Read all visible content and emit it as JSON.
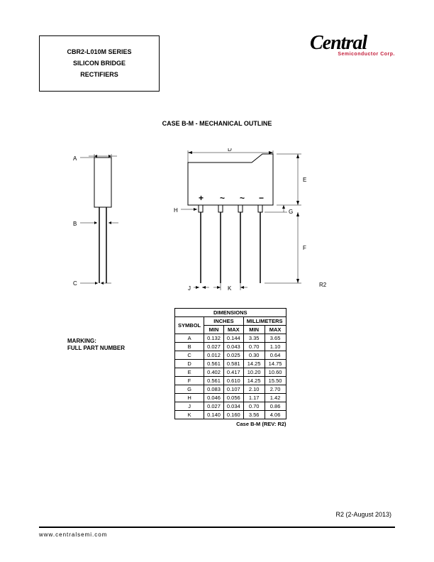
{
  "header": {
    "line1": "CBR2-L010M SERIES",
    "line2": "SILICON BRIDGE RECTIFIERS"
  },
  "logo": {
    "main": "Central",
    "sub": "Semiconductor Corp."
  },
  "section_title": "CASE B-M - MECHANICAL OUTLINE",
  "marking": {
    "line1": "MARKING:",
    "line2": "FULL PART NUMBER"
  },
  "labels": {
    "A": "A",
    "B": "B",
    "C": "C",
    "D": "D",
    "E": "E",
    "F": "F",
    "G": "G",
    "H": "H",
    "J": "J",
    "K": "K",
    "R2": "R2",
    "plus": "+",
    "tilde": "~",
    "minus": "−"
  },
  "table": {
    "title": "DIMENSIONS",
    "headers": {
      "symbol": "SYMBOL",
      "inches": "INCHES",
      "mm": "MILLIMETERS",
      "min": "MIN",
      "max": "MAX"
    },
    "rows": [
      {
        "sym": "A",
        "imin": "0.132",
        "imax": "0.144",
        "mmin": "3.35",
        "mmax": "3.65"
      },
      {
        "sym": "B",
        "imin": "0.027",
        "imax": "0.043",
        "mmin": "0.70",
        "mmax": "1.10"
      },
      {
        "sym": "C",
        "imin": "0.012",
        "imax": "0.025",
        "mmin": "0.30",
        "mmax": "0.64"
      },
      {
        "sym": "D",
        "imin": "0.561",
        "imax": "0.581",
        "mmin": "14.25",
        "mmax": "14.75"
      },
      {
        "sym": "E",
        "imin": "0.402",
        "imax": "0.417",
        "mmin": "10.20",
        "mmax": "10.60"
      },
      {
        "sym": "F",
        "imin": "0.561",
        "imax": "0.610",
        "mmin": "14.25",
        "mmax": "15.50"
      },
      {
        "sym": "G",
        "imin": "0.083",
        "imax": "0.107",
        "mmin": "2.10",
        "mmax": "2.70"
      },
      {
        "sym": "H",
        "imin": "0.046",
        "imax": "0.056",
        "mmin": "1.17",
        "mmax": "1.42"
      },
      {
        "sym": "J",
        "imin": "0.027",
        "imax": "0.034",
        "mmin": "0.70",
        "mmax": "0.86"
      },
      {
        "sym": "K",
        "imin": "0.140",
        "imax": "0.160",
        "mmin": "3.56",
        "mmax": "4.06"
      }
    ],
    "footer": "Case B-M (REV: R2)"
  },
  "revision": "R2 (2-August 2013)",
  "footer_url": "www.centralsemi.com",
  "colors": {
    "text": "#000000",
    "accent": "#c41e3a",
    "bg": "#ffffff"
  }
}
